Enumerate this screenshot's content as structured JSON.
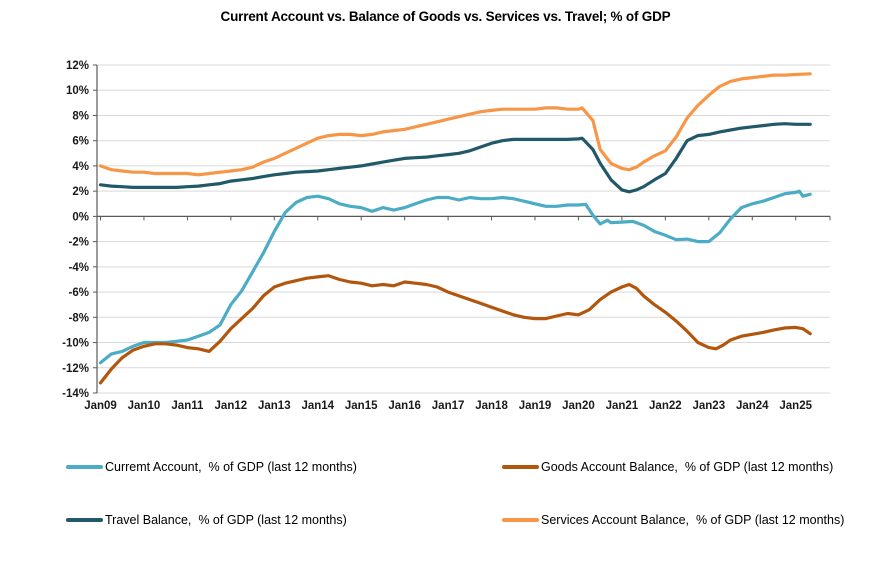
{
  "page": {
    "background": "#ffffff"
  },
  "chart_data": {
    "type": "line",
    "title": "Current Account vs. Balance of Goods vs. Services vs. Travel; % of GDP",
    "x_unit": "months_since_Jan09",
    "x_axis": {
      "tick_labels": [
        "Jan09",
        "Jan10",
        "Jan11",
        "Jan12",
        "Jan13",
        "Jan14",
        "Jan15",
        "Jan16",
        "Jan17",
        "Jan18",
        "Jan19",
        "Jan20",
        "Jan21",
        "Jan22",
        "Jan23",
        "Jan24",
        "Jan25"
      ],
      "months_per_tick": 12
    },
    "y_axis": {
      "min": -14,
      "max": 12,
      "step": 2,
      "suffix": "%"
    },
    "grid": true,
    "legend_position": "bottom",
    "colors": {
      "grid": "#d9d9d9",
      "axis": "#595959",
      "tick_text": "#1a1a1a"
    },
    "series": [
      {
        "id": "current-account",
        "name": "Curremt Account,  % of GDP (last 12 months)",
        "color": "#4BACC6",
        "points": [
          [
            0,
            -11.6
          ],
          [
            3,
            -10.9
          ],
          [
            6,
            -10.7
          ],
          [
            9,
            -10.3
          ],
          [
            12,
            -10.0
          ],
          [
            15,
            -10.0
          ],
          [
            18,
            -10.0
          ],
          [
            21,
            -9.9
          ],
          [
            24,
            -9.8
          ],
          [
            27,
            -9.5
          ],
          [
            30,
            -9.2
          ],
          [
            33,
            -8.6
          ],
          [
            36,
            -7.0
          ],
          [
            39,
            -5.9
          ],
          [
            42,
            -4.4
          ],
          [
            45,
            -2.9
          ],
          [
            48,
            -1.2
          ],
          [
            50,
            -0.2
          ],
          [
            51,
            0.3
          ],
          [
            54,
            1.1
          ],
          [
            57,
            1.5
          ],
          [
            60,
            1.6
          ],
          [
            63,
            1.4
          ],
          [
            66,
            1.0
          ],
          [
            69,
            0.8
          ],
          [
            72,
            0.7
          ],
          [
            75,
            0.4
          ],
          [
            78,
            0.7
          ],
          [
            81,
            0.5
          ],
          [
            84,
            0.7
          ],
          [
            87,
            1.0
          ],
          [
            90,
            1.3
          ],
          [
            93,
            1.5
          ],
          [
            96,
            1.5
          ],
          [
            99,
            1.3
          ],
          [
            102,
            1.5
          ],
          [
            105,
            1.4
          ],
          [
            108,
            1.4
          ],
          [
            111,
            1.5
          ],
          [
            114,
            1.4
          ],
          [
            117,
            1.2
          ],
          [
            120,
            1.0
          ],
          [
            123,
            0.8
          ],
          [
            126,
            0.8
          ],
          [
            129,
            0.9
          ],
          [
            132,
            0.9
          ],
          [
            134,
            0.95
          ],
          [
            136,
            0.1
          ],
          [
            138,
            -0.6
          ],
          [
            140,
            -0.3
          ],
          [
            141,
            -0.5
          ],
          [
            144,
            -0.45
          ],
          [
            147,
            -0.4
          ],
          [
            150,
            -0.7
          ],
          [
            153,
            -1.2
          ],
          [
            156,
            -1.5
          ],
          [
            159,
            -1.85
          ],
          [
            162,
            -1.8
          ],
          [
            165,
            -2.0
          ],
          [
            168,
            -2.0
          ],
          [
            171,
            -1.3
          ],
          [
            174,
            -0.2
          ],
          [
            177,
            0.7
          ],
          [
            180,
            1.0
          ],
          [
            183,
            1.2
          ],
          [
            186,
            1.5
          ],
          [
            189,
            1.8
          ],
          [
            192,
            1.9
          ],
          [
            193,
            2.0
          ],
          [
            194,
            1.6
          ],
          [
            196,
            1.75
          ]
        ]
      },
      {
        "id": "goods-balance",
        "name": "Goods Account Balance,  % of GDP (last 12 months)",
        "color": "#B2560D",
        "points": [
          [
            0,
            -13.2
          ],
          [
            3,
            -12.1
          ],
          [
            6,
            -11.2
          ],
          [
            9,
            -10.6
          ],
          [
            12,
            -10.3
          ],
          [
            15,
            -10.1
          ],
          [
            18,
            -10.1
          ],
          [
            21,
            -10.2
          ],
          [
            24,
            -10.4
          ],
          [
            27,
            -10.5
          ],
          [
            30,
            -10.7
          ],
          [
            33,
            -9.9
          ],
          [
            36,
            -8.9
          ],
          [
            39,
            -8.1
          ],
          [
            42,
            -7.3
          ],
          [
            45,
            -6.3
          ],
          [
            48,
            -5.6
          ],
          [
            51,
            -5.3
          ],
          [
            54,
            -5.1
          ],
          [
            57,
            -4.9
          ],
          [
            60,
            -4.8
          ],
          [
            63,
            -4.7
          ],
          [
            66,
            -5.0
          ],
          [
            69,
            -5.2
          ],
          [
            72,
            -5.3
          ],
          [
            75,
            -5.5
          ],
          [
            78,
            -5.4
          ],
          [
            81,
            -5.5
          ],
          [
            84,
            -5.2
          ],
          [
            87,
            -5.3
          ],
          [
            90,
            -5.4
          ],
          [
            93,
            -5.6
          ],
          [
            96,
            -6.0
          ],
          [
            99,
            -6.3
          ],
          [
            102,
            -6.6
          ],
          [
            105,
            -6.9
          ],
          [
            108,
            -7.2
          ],
          [
            111,
            -7.5
          ],
          [
            114,
            -7.8
          ],
          [
            117,
            -8.0
          ],
          [
            120,
            -8.1
          ],
          [
            123,
            -8.1
          ],
          [
            126,
            -7.9
          ],
          [
            129,
            -7.7
          ],
          [
            132,
            -7.8
          ],
          [
            135,
            -7.4
          ],
          [
            138,
            -6.6
          ],
          [
            141,
            -6.0
          ],
          [
            144,
            -5.6
          ],
          [
            146,
            -5.4
          ],
          [
            148,
            -5.7
          ],
          [
            150,
            -6.3
          ],
          [
            153,
            -7.0
          ],
          [
            156,
            -7.6
          ],
          [
            159,
            -8.3
          ],
          [
            162,
            -9.1
          ],
          [
            165,
            -10.0
          ],
          [
            168,
            -10.4
          ],
          [
            170,
            -10.5
          ],
          [
            172,
            -10.2
          ],
          [
            174,
            -9.8
          ],
          [
            177,
            -9.5
          ],
          [
            180,
            -9.35
          ],
          [
            183,
            -9.2
          ],
          [
            186,
            -9.0
          ],
          [
            189,
            -8.85
          ],
          [
            192,
            -8.8
          ],
          [
            194,
            -8.9
          ],
          [
            196,
            -9.3
          ]
        ]
      },
      {
        "id": "travel-balance",
        "name": "Travel Balance,  % of GDP (last 12 months)",
        "color": "#215968",
        "points": [
          [
            0,
            2.5
          ],
          [
            3,
            2.4
          ],
          [
            6,
            2.35
          ],
          [
            9,
            2.3
          ],
          [
            12,
            2.3
          ],
          [
            15,
            2.3
          ],
          [
            18,
            2.3
          ],
          [
            21,
            2.3
          ],
          [
            24,
            2.35
          ],
          [
            27,
            2.4
          ],
          [
            30,
            2.5
          ],
          [
            33,
            2.6
          ],
          [
            36,
            2.8
          ],
          [
            39,
            2.9
          ],
          [
            42,
            3.0
          ],
          [
            45,
            3.15
          ],
          [
            48,
            3.3
          ],
          [
            51,
            3.4
          ],
          [
            54,
            3.5
          ],
          [
            57,
            3.55
          ],
          [
            60,
            3.6
          ],
          [
            63,
            3.7
          ],
          [
            66,
            3.8
          ],
          [
            69,
            3.9
          ],
          [
            72,
            4.0
          ],
          [
            75,
            4.15
          ],
          [
            78,
            4.3
          ],
          [
            81,
            4.45
          ],
          [
            84,
            4.6
          ],
          [
            87,
            4.65
          ],
          [
            90,
            4.7
          ],
          [
            93,
            4.8
          ],
          [
            96,
            4.9
          ],
          [
            99,
            5.0
          ],
          [
            102,
            5.2
          ],
          [
            105,
            5.5
          ],
          [
            108,
            5.8
          ],
          [
            111,
            6.0
          ],
          [
            114,
            6.1
          ],
          [
            117,
            6.1
          ],
          [
            120,
            6.1
          ],
          [
            123,
            6.1
          ],
          [
            126,
            6.1
          ],
          [
            129,
            6.1
          ],
          [
            132,
            6.15
          ],
          [
            133,
            6.2
          ],
          [
            136,
            5.3
          ],
          [
            138,
            4.2
          ],
          [
            141,
            2.9
          ],
          [
            144,
            2.1
          ],
          [
            146,
            1.95
          ],
          [
            148,
            2.1
          ],
          [
            150,
            2.35
          ],
          [
            153,
            2.9
          ],
          [
            156,
            3.4
          ],
          [
            159,
            4.6
          ],
          [
            162,
            6.0
          ],
          [
            165,
            6.4
          ],
          [
            168,
            6.5
          ],
          [
            171,
            6.7
          ],
          [
            174,
            6.85
          ],
          [
            177,
            7.0
          ],
          [
            180,
            7.1
          ],
          [
            183,
            7.2
          ],
          [
            186,
            7.3
          ],
          [
            189,
            7.35
          ],
          [
            192,
            7.3
          ],
          [
            196,
            7.3
          ]
        ]
      },
      {
        "id": "services-balance",
        "name": "Services Account Balance,  % of GDP (last 12 months)",
        "color": "#F79646",
        "points": [
          [
            0,
            4.0
          ],
          [
            3,
            3.7
          ],
          [
            6,
            3.6
          ],
          [
            9,
            3.5
          ],
          [
            12,
            3.5
          ],
          [
            15,
            3.4
          ],
          [
            18,
            3.4
          ],
          [
            21,
            3.4
          ],
          [
            24,
            3.4
          ],
          [
            27,
            3.3
          ],
          [
            30,
            3.4
          ],
          [
            33,
            3.5
          ],
          [
            36,
            3.6
          ],
          [
            39,
            3.7
          ],
          [
            42,
            3.9
          ],
          [
            45,
            4.3
          ],
          [
            48,
            4.6
          ],
          [
            51,
            5.0
          ],
          [
            54,
            5.4
          ],
          [
            57,
            5.8
          ],
          [
            60,
            6.2
          ],
          [
            63,
            6.4
          ],
          [
            66,
            6.5
          ],
          [
            69,
            6.5
          ],
          [
            72,
            6.4
          ],
          [
            75,
            6.5
          ],
          [
            78,
            6.7
          ],
          [
            81,
            6.8
          ],
          [
            84,
            6.9
          ],
          [
            87,
            7.1
          ],
          [
            90,
            7.3
          ],
          [
            93,
            7.5
          ],
          [
            96,
            7.7
          ],
          [
            99,
            7.9
          ],
          [
            102,
            8.1
          ],
          [
            105,
            8.3
          ],
          [
            108,
            8.4
          ],
          [
            111,
            8.5
          ],
          [
            114,
            8.5
          ],
          [
            117,
            8.5
          ],
          [
            120,
            8.5
          ],
          [
            123,
            8.6
          ],
          [
            126,
            8.6
          ],
          [
            129,
            8.5
          ],
          [
            132,
            8.5
          ],
          [
            133,
            8.6
          ],
          [
            136,
            7.6
          ],
          [
            138,
            5.3
          ],
          [
            141,
            4.2
          ],
          [
            144,
            3.8
          ],
          [
            146,
            3.7
          ],
          [
            148,
            3.9
          ],
          [
            150,
            4.3
          ],
          [
            153,
            4.8
          ],
          [
            156,
            5.2
          ],
          [
            159,
            6.3
          ],
          [
            162,
            7.8
          ],
          [
            165,
            8.8
          ],
          [
            168,
            9.6
          ],
          [
            171,
            10.3
          ],
          [
            174,
            10.7
          ],
          [
            177,
            10.9
          ],
          [
            180,
            11.0
          ],
          [
            183,
            11.1
          ],
          [
            186,
            11.2
          ],
          [
            189,
            11.2
          ],
          [
            192,
            11.25
          ],
          [
            196,
            11.3
          ]
        ]
      }
    ],
    "legend_order": [
      0,
      1,
      2,
      3
    ]
  }
}
